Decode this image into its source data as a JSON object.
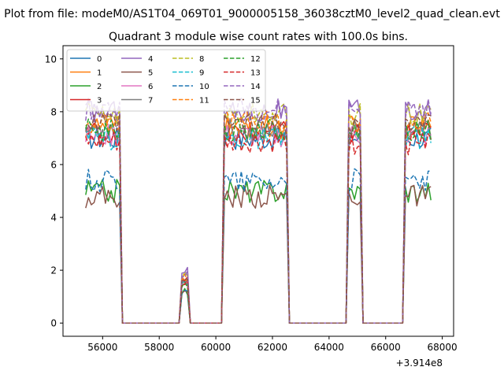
{
  "figure": {
    "suptitle": "Plot from file: modeM0/AS1T04_069T01_9000005158_36038cztM0_level2_quad_clean.evt",
    "title": "Quadrant 3 module wise count rates with 100.0s bins.",
    "x_offset_label": "+3.914e8"
  },
  "chart_data": {
    "type": "line",
    "title": "Quadrant 3 module wise count rates with 100.0s bins.",
    "xlabel": "",
    "ylabel": "",
    "x_offset": 391400000,
    "xlim": [
      54600,
      68400
    ],
    "ylim": [
      -0.5,
      10.5
    ],
    "xticks": [
      56000,
      58000,
      60000,
      62000,
      64000,
      66000,
      68000
    ],
    "yticks": [
      0,
      2,
      4,
      6,
      8,
      10
    ],
    "grid": false,
    "legend_placement": "top-left",
    "legend_columns": 4,
    "segments": [
      {
        "start": 55400,
        "end": 56600
      },
      {
        "start": 58800,
        "end": 59000
      },
      {
        "start": 60300,
        "end": 62500
      },
      {
        "start": 64700,
        "end": 65100
      },
      {
        "start": 66700,
        "end": 67600
      }
    ],
    "series": [
      {
        "name": "0",
        "color": "#1f77b4",
        "dash": "solid",
        "rate": 7.0,
        "peak": 1.6
      },
      {
        "name": "1",
        "color": "#ff7f0e",
        "dash": "solid",
        "rate": 7.4,
        "peak": 1.7
      },
      {
        "name": "2",
        "color": "#2ca02c",
        "dash": "solid",
        "rate": 5.0,
        "peak": 1.2
      },
      {
        "name": "3",
        "color": "#d62728",
        "dash": "solid",
        "rate": 7.2,
        "peak": 1.6
      },
      {
        "name": "4",
        "color": "#9467bd",
        "dash": "solid",
        "rate": 8.0,
        "peak": 2.0
      },
      {
        "name": "5",
        "color": "#8c564b",
        "dash": "solid",
        "rate": 4.8,
        "peak": 1.1
      },
      {
        "name": "6",
        "color": "#e377c2",
        "dash": "solid",
        "rate": 7.1,
        "peak": 1.5
      },
      {
        "name": "7",
        "color": "#7f7f7f",
        "dash": "solid",
        "rate": 7.3,
        "peak": 1.6
      },
      {
        "name": "8",
        "color": "#bcbd22",
        "dash": "dashed",
        "rate": 7.9,
        "peak": 1.8
      },
      {
        "name": "9",
        "color": "#17becf",
        "dash": "dashed",
        "rate": 7.0,
        "peak": 1.5
      },
      {
        "name": "10",
        "color": "#1f77b4",
        "dash": "dashed",
        "rate": 5.4,
        "peak": 1.3
      },
      {
        "name": "11",
        "color": "#ff7f0e",
        "dash": "dashed",
        "rate": 7.6,
        "peak": 1.7
      },
      {
        "name": "12",
        "color": "#2ca02c",
        "dash": "dashed",
        "rate": 7.3,
        "peak": 1.5
      },
      {
        "name": "13",
        "color": "#d62728",
        "dash": "dashed",
        "rate": 6.8,
        "peak": 1.5
      },
      {
        "name": "14",
        "color": "#9467bd",
        "dash": "dashed",
        "rate": 8.1,
        "peak": 1.9
      },
      {
        "name": "15",
        "color": "#8c564b",
        "dash": "dashed",
        "rate": 7.5,
        "peak": 1.6
      }
    ]
  }
}
